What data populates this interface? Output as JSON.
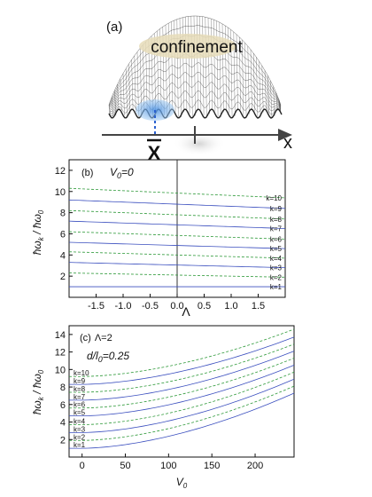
{
  "panel_a": {
    "label": "(a)",
    "confinement_text": "confinement",
    "xbar_label": "X",
    "axis_label": "x"
  },
  "chart_data": [
    {
      "type": "line",
      "panel_label": "(b)",
      "param_text": "V",
      "param_sub": "0",
      "param_value": "=0",
      "xlabel": "Λ",
      "ylabel": "ħω_k / ħω_0",
      "xlim": [
        -2.0,
        2.0
      ],
      "ylim": [
        0,
        13
      ],
      "xticks": [
        -1.5,
        -1.0,
        -0.5,
        0.0,
        0.5,
        1.0,
        1.5
      ],
      "xtick_labels": [
        "-1.5",
        "-1.0",
        "-0.5",
        "0.0",
        "0.5",
        "1.0",
        "1.5"
      ],
      "yticks": [
        2,
        4,
        6,
        8,
        10,
        12
      ],
      "ytick_labels": [
        "2",
        "4",
        "6",
        "8",
        "10",
        "12"
      ],
      "vline_x": 0,
      "series": [
        {
          "name": "k=1",
          "style": "solid",
          "x": [
            -2,
            2
          ],
          "y": [
            1.0,
            1.0
          ]
        },
        {
          "name": "k=2",
          "style": "dashed",
          "x": [
            -2,
            2
          ],
          "y": [
            2.3,
            1.9
          ]
        },
        {
          "name": "k=3",
          "style": "solid",
          "x": [
            -2,
            2
          ],
          "y": [
            3.3,
            2.8
          ]
        },
        {
          "name": "k=4",
          "style": "dashed",
          "x": [
            -2,
            2
          ],
          "y": [
            4.3,
            3.7
          ]
        },
        {
          "name": "k=5",
          "style": "solid",
          "x": [
            -2,
            2
          ],
          "y": [
            5.2,
            4.6
          ]
        },
        {
          "name": "k=6",
          "style": "dashed",
          "x": [
            -2,
            2
          ],
          "y": [
            6.2,
            5.5
          ]
        },
        {
          "name": "k=7",
          "style": "solid",
          "x": [
            -2,
            2
          ],
          "y": [
            7.2,
            6.5
          ]
        },
        {
          "name": "k=8",
          "style": "dashed",
          "x": [
            -2,
            2
          ],
          "y": [
            8.2,
            7.4
          ]
        },
        {
          "name": "k=9",
          "style": "solid",
          "x": [
            -2,
            2
          ],
          "y": [
            9.2,
            8.4
          ]
        },
        {
          "name": "k=10",
          "style": "dashed",
          "x": [
            -2,
            2
          ],
          "y": [
            10.3,
            9.4
          ]
        }
      ]
    },
    {
      "type": "line",
      "panel_label": "(c)",
      "param_text": "Λ=2",
      "param2_text": "d/l",
      "param2_sub": "0",
      "param2_value": "=0.25",
      "xlabel": "V",
      "xlabel_sub": "0",
      "ylabel": "ħω_k / ħω_0",
      "xlim": [
        -15,
        245
      ],
      "ylim": [
        0,
        15
      ],
      "xticks": [
        0,
        50,
        100,
        150,
        200
      ],
      "xtick_labels": [
        "0",
        "50",
        "100",
        "150",
        "200"
      ],
      "yticks": [
        2,
        4,
        6,
        8,
        10,
        12,
        14
      ],
      "ytick_labels": [
        "2",
        "4",
        "6",
        "8",
        "10",
        "12",
        "14"
      ],
      "series": [
        {
          "name": "k=1",
          "style": "solid",
          "y0": 1.0,
          "y_end": 7.3
        },
        {
          "name": "k=2",
          "style": "dashed",
          "y0": 1.9,
          "y_end": 8.1
        },
        {
          "name": "k=3",
          "style": "solid",
          "y0": 2.8,
          "y_end": 8.9
        },
        {
          "name": "k=4",
          "style": "dashed",
          "y0": 3.7,
          "y_end": 9.7
        },
        {
          "name": "k=5",
          "style": "solid",
          "y0": 4.7,
          "y_end": 10.5
        },
        {
          "name": "k=6",
          "style": "dashed",
          "y0": 5.6,
          "y_end": 11.3
        },
        {
          "name": "k=7",
          "style": "solid",
          "y0": 6.5,
          "y_end": 12.1
        },
        {
          "name": "k=8",
          "style": "dashed",
          "y0": 7.4,
          "y_end": 12.9
        },
        {
          "name": "k=9",
          "style": "solid",
          "y0": 8.3,
          "y_end": 13.7
        },
        {
          "name": "k=10",
          "style": "dashed",
          "y0": 9.2,
          "y_end": 14.6
        }
      ]
    }
  ],
  "colors": {
    "solid": "#3b4fbf",
    "dashed": "#2f9a3a",
    "confinement_bg": "#e6dcb8",
    "blob": "#7fb8ee",
    "axis_arrow": "#444444",
    "x_label": "#7a5a10"
  }
}
